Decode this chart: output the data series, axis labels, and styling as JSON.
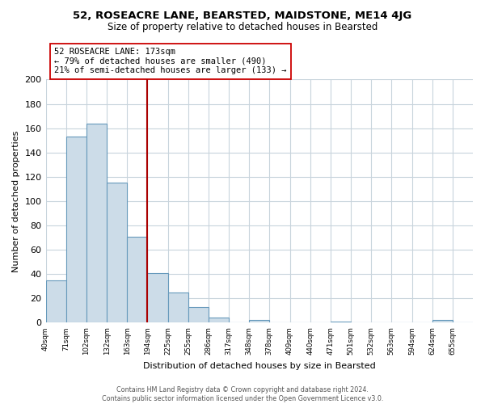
{
  "title": "52, ROSEACRE LANE, BEARSTED, MAIDSTONE, ME14 4JG",
  "subtitle": "Size of property relative to detached houses in Bearsted",
  "xlabel": "Distribution of detached houses by size in Bearsted",
  "ylabel": "Number of detached properties",
  "bin_labels": [
    "40sqm",
    "71sqm",
    "102sqm",
    "132sqm",
    "163sqm",
    "194sqm",
    "225sqm",
    "255sqm",
    "286sqm",
    "317sqm",
    "348sqm",
    "378sqm",
    "409sqm",
    "440sqm",
    "471sqm",
    "501sqm",
    "532sqm",
    "563sqm",
    "594sqm",
    "624sqm",
    "655sqm"
  ],
  "bar_heights": [
    35,
    153,
    164,
    115,
    71,
    41,
    25,
    13,
    4,
    0,
    2,
    0,
    0,
    0,
    1,
    0,
    0,
    0,
    0,
    2,
    0
  ],
  "bar_color": "#ccdce8",
  "bar_edge_color": "#6699bb",
  "vline_color": "#aa0000",
  "annotation_line1": "52 ROSEACRE LANE: 173sqm",
  "annotation_line2": "← 79% of detached houses are smaller (490)",
  "annotation_line3": "21% of semi-detached houses are larger (133) →",
  "annotation_box_color": "#ffffff",
  "annotation_box_edge": "#cc0000",
  "ylim": [
    0,
    200
  ],
  "yticks": [
    0,
    20,
    40,
    60,
    80,
    100,
    120,
    140,
    160,
    180,
    200
  ],
  "footer_line1": "Contains HM Land Registry data © Crown copyright and database right 2024.",
  "footer_line2": "Contains public sector information licensed under the Open Government Licence v3.0.",
  "background_color": "#ffffff",
  "grid_color": "#c8d4dc",
  "vline_bin_index": 5
}
